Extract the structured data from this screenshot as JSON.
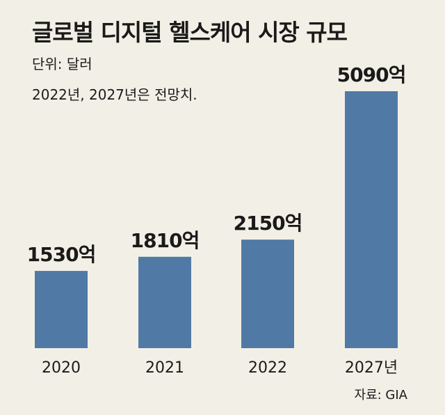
{
  "header": {
    "title": "글로벌 디지털 헬스케어 시장 규모",
    "unit": "단위: 달러",
    "note": "2022년, 2027년은 전망치."
  },
  "footer": {
    "source": "자료: GIA"
  },
  "colors": {
    "background": "#f2f0e6",
    "bar": "#5179a6",
    "text": "#1a1a1a"
  },
  "chart_data": {
    "type": "bar",
    "title": "글로벌 디지털 헬스케어 시장 규모",
    "xlabel": "",
    "ylabel": "",
    "categories": [
      "2020",
      "2021",
      "2022",
      "2027년"
    ],
    "values": [
      1530,
      1810,
      2150,
      5090
    ],
    "value_labels": [
      "1530억",
      "1810억",
      "2150억",
      "5090억"
    ],
    "unit": "억 달러",
    "ylim": [
      0,
      5090
    ],
    "grid": false,
    "legend": "none"
  }
}
